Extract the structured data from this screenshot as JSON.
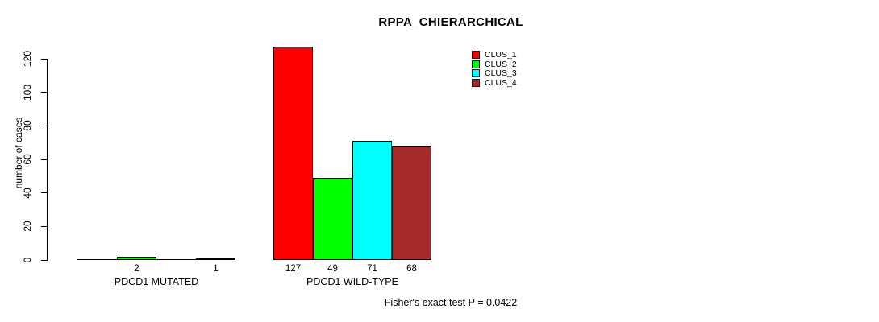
{
  "chart_data": {
    "type": "bar",
    "title": "RPPA_CHIERARCHICAL",
    "xlabel": "",
    "ylabel": "number of cases",
    "categories": [
      "PDCD1 MUTATED",
      "PDCD1 WILD-TYPE"
    ],
    "series": [
      {
        "name": "CLUS_1",
        "color": "#ff0000",
        "values": [
          0,
          127
        ]
      },
      {
        "name": "CLUS_2",
        "color": "#00ff00",
        "values": [
          2,
          49
        ]
      },
      {
        "name": "CLUS_3",
        "color": "#00ffff",
        "values": [
          0,
          71
        ]
      },
      {
        "name": "CLUS_4",
        "color": "#a52a2a",
        "values": [
          1,
          68
        ]
      }
    ],
    "yticks": [
      0,
      20,
      40,
      60,
      80,
      100,
      120
    ],
    "ylim": [
      0,
      127
    ],
    "axis_range_shown": [
      0,
      120
    ],
    "bar_value_labels": {
      "PDCD1 MUTATED": [
        "",
        "2",
        "",
        "1"
      ],
      "PDCD1 WILD-TYPE": [
        "127",
        "49",
        "71",
        "68"
      ]
    },
    "annotation": "Fisher's exact test P = 0.0422",
    "legend_entries": [
      "CLUS_1",
      "CLUS_2",
      "CLUS_3",
      "CLUS_4"
    ],
    "legend_position": "top-right",
    "grid": false,
    "bar_border_color": "#000000",
    "background_color": "#ffffff",
    "text_color": "#000000"
  }
}
